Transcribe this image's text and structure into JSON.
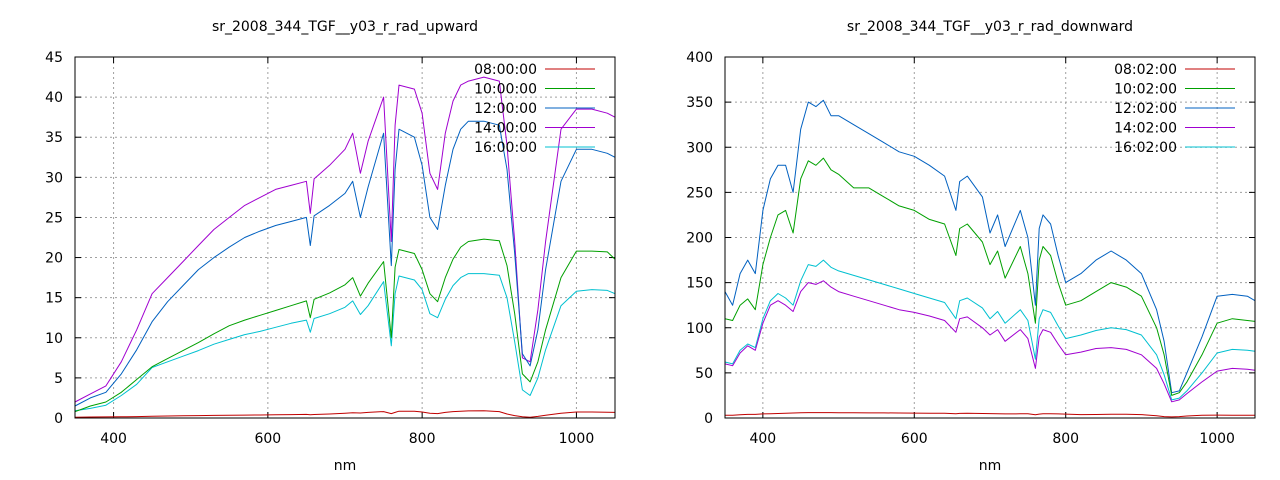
{
  "chart_data": [
    {
      "type": "line",
      "title": "sr_2008_344_TGF__y03_r_rad_upward",
      "xlabel": "nm",
      "ylabel": "",
      "xlim": [
        350,
        1050
      ],
      "ylim": [
        0,
        45
      ],
      "xticks": [
        400,
        600,
        800,
        1000
      ],
      "yticks": [
        0,
        5,
        10,
        15,
        20,
        25,
        30,
        35,
        40,
        45
      ],
      "grid": true,
      "legend_position": "top-right",
      "x": [
        350,
        370,
        390,
        410,
        430,
        450,
        470,
        490,
        510,
        530,
        550,
        570,
        590,
        610,
        630,
        650,
        655,
        660,
        680,
        700,
        710,
        720,
        730,
        750,
        760,
        765,
        770,
        790,
        800,
        810,
        820,
        830,
        840,
        850,
        860,
        880,
        900,
        910,
        920,
        930,
        940,
        950,
        960,
        980,
        1000,
        1020,
        1040,
        1050
      ],
      "series": [
        {
          "name": "08:00:00",
          "color": "#c00000",
          "values": [
            0.1,
            0.12,
            0.14,
            0.15,
            0.18,
            0.22,
            0.25,
            0.28,
            0.3,
            0.32,
            0.34,
            0.36,
            0.38,
            0.4,
            0.42,
            0.45,
            0.4,
            0.44,
            0.5,
            0.6,
            0.65,
            0.62,
            0.7,
            0.8,
            0.55,
            0.7,
            0.85,
            0.85,
            0.75,
            0.6,
            0.55,
            0.7,
            0.8,
            0.85,
            0.88,
            0.9,
            0.8,
            0.5,
            0.3,
            0.15,
            0.1,
            0.2,
            0.35,
            0.6,
            0.75,
            0.75,
            0.72,
            0.7
          ]
        },
        {
          "name": "10:00:00",
          "color": "#00a000",
          "values": [
            0.8,
            1.5,
            2.0,
            3.2,
            4.8,
            6.4,
            7.4,
            8.4,
            9.4,
            10.5,
            11.5,
            12.2,
            12.8,
            13.4,
            14.0,
            14.6,
            12.5,
            14.8,
            15.6,
            16.6,
            17.5,
            15.2,
            16.8,
            19.5,
            10.0,
            18.8,
            21.0,
            20.5,
            18.5,
            15.5,
            14.5,
            17.5,
            19.8,
            21.3,
            22.0,
            22.3,
            22.1,
            19.0,
            13.0,
            5.5,
            4.5,
            7.0,
            11.0,
            17.5,
            20.8,
            20.8,
            20.7,
            19.8
          ]
        },
        {
          "name": "12:00:00",
          "color": "#0060c0",
          "values": [
            1.5,
            2.5,
            3.2,
            5.5,
            8.5,
            12.0,
            14.5,
            16.5,
            18.5,
            20.0,
            21.3,
            22.5,
            23.3,
            24.0,
            24.5,
            25.0,
            21.5,
            25.2,
            26.5,
            28.0,
            29.5,
            25.0,
            28.8,
            35.5,
            19.0,
            31.0,
            36.0,
            35.0,
            31.5,
            25.0,
            23.5,
            29.0,
            33.5,
            36.0,
            37.0,
            37.0,
            36.5,
            31.0,
            20.5,
            8.0,
            6.5,
            11.0,
            18.5,
            29.5,
            33.5,
            33.5,
            33.0,
            32.5
          ]
        },
        {
          "name": "14:00:00",
          "color": "#a000d0",
          "values": [
            2.0,
            3.0,
            4.0,
            7.0,
            11.0,
            15.5,
            17.5,
            19.5,
            21.5,
            23.5,
            25.0,
            26.5,
            27.5,
            28.5,
            29.0,
            29.5,
            25.5,
            29.8,
            31.5,
            33.5,
            35.5,
            30.5,
            34.5,
            40.0,
            22.0,
            36.5,
            41.5,
            41.0,
            38.0,
            30.5,
            28.5,
            35.5,
            39.5,
            41.5,
            42.0,
            42.5,
            42.0,
            34.0,
            22.0,
            7.5,
            7.0,
            13.5,
            22.0,
            36.0,
            38.5,
            38.5,
            38.0,
            37.5
          ]
        },
        {
          "name": "16:00:00",
          "color": "#00c0d0",
          "values": [
            0.9,
            1.2,
            1.6,
            2.8,
            4.2,
            6.3,
            7.0,
            7.7,
            8.4,
            9.2,
            9.8,
            10.4,
            10.8,
            11.3,
            11.8,
            12.2,
            10.7,
            12.4,
            13.0,
            13.8,
            14.6,
            12.9,
            14.0,
            17.0,
            9.0,
            15.5,
            17.7,
            17.2,
            16.0,
            13.0,
            12.5,
            14.8,
            16.5,
            17.5,
            18.0,
            18.0,
            17.8,
            15.0,
            9.5,
            3.5,
            2.8,
            5.0,
            8.5,
            14.0,
            15.8,
            16.0,
            15.9,
            15.5
          ]
        }
      ]
    },
    {
      "type": "line",
      "title": "sr_2008_344_TGF__y03_r_rad_downward",
      "xlabel": "nm",
      "ylabel": "",
      "xlim": [
        350,
        1050
      ],
      "ylim": [
        0,
        400
      ],
      "xticks": [
        400,
        600,
        800,
        1000
      ],
      "yticks": [
        0,
        50,
        100,
        150,
        200,
        250,
        300,
        350,
        400
      ],
      "grid": true,
      "legend_position": "top-right",
      "x": [
        350,
        360,
        370,
        380,
        390,
        400,
        410,
        420,
        430,
        440,
        450,
        460,
        470,
        480,
        490,
        500,
        520,
        540,
        560,
        580,
        600,
        620,
        640,
        655,
        660,
        670,
        690,
        700,
        710,
        720,
        740,
        750,
        760,
        765,
        770,
        780,
        790,
        800,
        820,
        840,
        860,
        880,
        900,
        920,
        930,
        940,
        950,
        960,
        980,
        1000,
        1020,
        1040,
        1050
      ],
      "series": [
        {
          "name": "08:02:00",
          "color": "#c00000",
          "values": [
            3,
            3,
            3.5,
            4,
            4,
            4.5,
            4.8,
            5,
            5.2,
            5.5,
            5.8,
            6,
            6,
            6,
            6,
            5.9,
            5.8,
            5.7,
            5.6,
            5.5,
            5.4,
            5.3,
            5.2,
            4.8,
            5.1,
            5.2,
            5,
            4.9,
            4.8,
            4.5,
            4.7,
            4.8,
            3.5,
            4.3,
            4.6,
            4.6,
            4.5,
            4.3,
            3.8,
            3.9,
            4.2,
            4.1,
            3.8,
            2.5,
            1.5,
            1.2,
            1.6,
            2.2,
            3,
            3.2,
            3.1,
            3,
            3
          ]
        },
        {
          "name": "10:02:00",
          "color": "#00a000",
          "values": [
            110,
            108,
            125,
            132,
            120,
            170,
            200,
            225,
            230,
            205,
            265,
            285,
            280,
            288,
            275,
            270,
            255,
            255,
            245,
            235,
            230,
            220,
            215,
            180,
            210,
            215,
            195,
            170,
            185,
            155,
            190,
            160,
            105,
            175,
            190,
            180,
            150,
            125,
            130,
            140,
            150,
            145,
            135,
            100,
            70,
            25,
            28,
            40,
            70,
            105,
            110,
            108,
            107
          ]
        },
        {
          "name": "12:02:00",
          "color": "#0060c0",
          "values": [
            140,
            125,
            160,
            175,
            160,
            230,
            265,
            280,
            280,
            250,
            320,
            350,
            345,
            352,
            335,
            335,
            325,
            315,
            305,
            295,
            290,
            280,
            268,
            230,
            262,
            268,
            245,
            205,
            225,
            190,
            230,
            200,
            125,
            210,
            225,
            215,
            180,
            150,
            160,
            175,
            185,
            175,
            160,
            120,
            85,
            28,
            30,
            50,
            90,
            135,
            137,
            135,
            130
          ]
        },
        {
          "name": "14:02:00",
          "color": "#a000d0",
          "values": [
            60,
            58,
            72,
            80,
            75,
            105,
            125,
            130,
            125,
            118,
            140,
            150,
            148,
            152,
            145,
            140,
            135,
            130,
            125,
            120,
            117,
            113,
            108,
            95,
            110,
            112,
            100,
            92,
            98,
            85,
            98,
            88,
            55,
            90,
            98,
            95,
            82,
            70,
            73,
            77,
            78,
            76,
            70,
            55,
            38,
            18,
            20,
            27,
            40,
            52,
            55,
            54,
            53
          ]
        },
        {
          "name": "16:02:00",
          "color": "#00c0d0",
          "values": [
            62,
            60,
            75,
            82,
            78,
            110,
            130,
            138,
            133,
            125,
            152,
            170,
            168,
            175,
            167,
            163,
            158,
            153,
            148,
            143,
            138,
            133,
            128,
            110,
            130,
            133,
            122,
            110,
            118,
            105,
            120,
            108,
            65,
            110,
            120,
            117,
            102,
            88,
            92,
            97,
            100,
            98,
            92,
            70,
            48,
            20,
            22,
            30,
            50,
            72,
            76,
            75,
            74
          ]
        }
      ]
    }
  ]
}
